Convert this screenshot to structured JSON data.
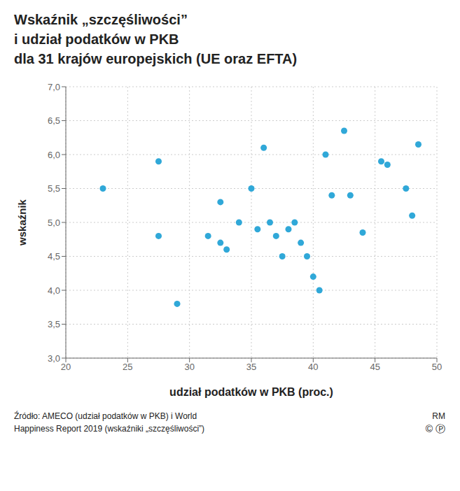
{
  "chart_data": {
    "type": "scatter",
    "title": "Wskaźnik „szczęśliwości”\ni udział podatków w PKB\ndla 31 krajów europejskich (UE oraz EFTA)",
    "x_label": "udział podatków w PKB (proc.)",
    "y_label": "wskaźnik",
    "x": [
      23.0,
      27.5,
      27.5,
      29.0,
      31.5,
      32.5,
      32.5,
      33.0,
      34.0,
      35.0,
      35.5,
      36.0,
      36.5,
      37.0,
      37.5,
      38.0,
      38.5,
      39.0,
      39.5,
      40.0,
      40.5,
      41.0,
      41.5,
      42.5,
      43.0,
      44.0,
      45.5,
      46.0,
      47.5,
      48.0,
      48.5
    ],
    "values": [
      5.5,
      4.8,
      5.9,
      3.8,
      4.8,
      4.7,
      5.3,
      4.6,
      5.0,
      5.5,
      4.9,
      6.1,
      5.0,
      4.8,
      4.5,
      4.9,
      5.0,
      4.7,
      4.5,
      4.2,
      4.0,
      6.0,
      5.4,
      6.35,
      5.4,
      4.85,
      5.9,
      5.85,
      5.5,
      5.1,
      6.15
    ],
    "color": "#30A8D8",
    "xlim": [
      20,
      50
    ],
    "ylim": [
      3.0,
      7.0
    ],
    "xticks": [
      20,
      25,
      30,
      35,
      40,
      45,
      50
    ],
    "yticks": [
      {
        "value": 3.0,
        "label": "3,0"
      },
      {
        "value": 3.5,
        "label": "3,5"
      },
      {
        "value": 4.0,
        "label": "4,0"
      },
      {
        "value": 4.5,
        "label": "4,5"
      },
      {
        "value": 5.0,
        "label": "5,0"
      },
      {
        "value": 5.5,
        "label": "5,5"
      },
      {
        "value": 6.0,
        "label": "6,0"
      },
      {
        "value": 6.5,
        "label": "6,5"
      },
      {
        "value": 7.0,
        "label": "7,0"
      }
    ],
    "grid": true,
    "annotations": [
      "Źródło: AMECO (udział podatków w PKB) i World",
      "Happiness Report 2019 (wskaźniki „szczęśliwości”)",
      "RM",
      "©",
      "Ⓟ"
    ]
  }
}
